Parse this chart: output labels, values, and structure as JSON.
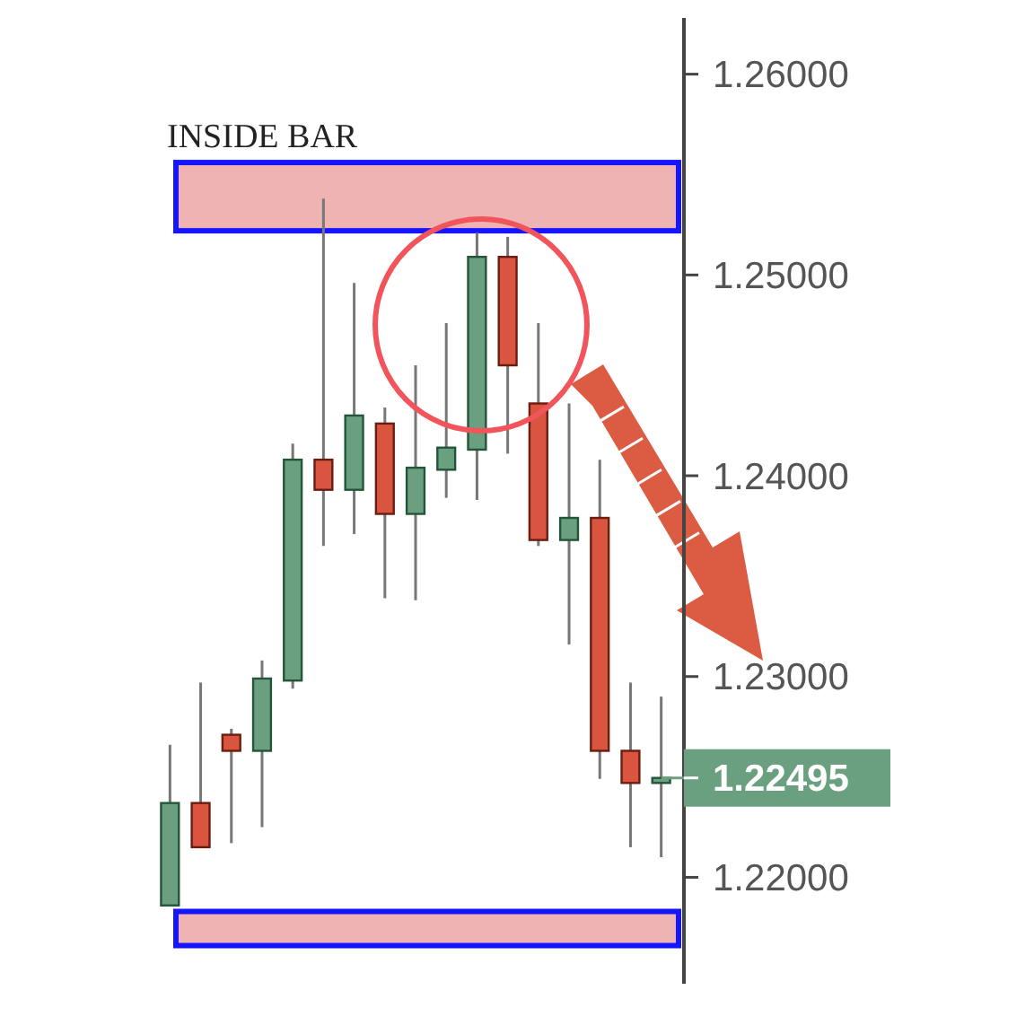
{
  "chart_data": {
    "type": "candlestick",
    "categories": [
      null,
      null,
      null,
      null,
      null,
      null,
      null,
      null,
      null,
      null,
      null,
      null,
      null,
      null,
      null,
      null,
      null
    ],
    "ohlc": [
      [
        1.2186,
        1.2266,
        1.2186,
        1.2237
      ],
      [
        1.2237,
        1.2297,
        1.2215,
        1.2215
      ],
      [
        1.2271,
        1.2274,
        1.2217,
        1.2263
      ],
      [
        1.2263,
        1.2308,
        1.2225,
        1.2299
      ],
      [
        1.2298,
        1.2416,
        1.2294,
        1.2408
      ],
      [
        1.2408,
        1.2538,
        1.2365,
        1.2393
      ],
      [
        1.2393,
        1.2496,
        1.2371,
        1.243
      ],
      [
        1.2426,
        1.2434,
        1.2339,
        1.2381
      ],
      [
        1.2381,
        1.2455,
        1.2338,
        1.2404
      ],
      [
        1.2403,
        1.2476,
        1.2389,
        1.2414
      ],
      [
        1.2413,
        1.2521,
        1.2388,
        1.2509
      ],
      [
        1.2509,
        1.2519,
        1.2411,
        1.2455
      ],
      [
        1.2436,
        1.2476,
        1.2365,
        1.2368
      ],
      [
        1.2368,
        1.2436,
        1.2316,
        1.2379
      ],
      [
        1.2379,
        1.2408,
        1.2249,
        1.2263
      ],
      [
        1.2263,
        1.2297,
        1.2215,
        1.2247
      ],
      [
        1.2247,
        1.229,
        1.221,
        1.22495
      ]
    ],
    "colors": [
      "#6aa07f",
      "#d9553f",
      "#d9553f",
      "#6aa07f",
      "#6aa07f",
      "#d9553f",
      "#6aa07f",
      "#d9553f",
      "#6aa07f",
      "#6aa07f",
      "#6aa07f",
      "#d9553f",
      "#d9553f",
      "#6aa07f",
      "#d9553f",
      "#d9553f",
      "#6aa07f"
    ],
    "ylim": [
      1.2147,
      1.2628
    ],
    "yticks": [
      {
        "value": 1.22,
        "label": "1.22000"
      },
      {
        "value": 1.23,
        "label": "1.23000"
      },
      {
        "value": 1.24,
        "label": "1.24000"
      },
      {
        "value": 1.25,
        "label": "1.25000"
      },
      {
        "value": 1.26,
        "label": "1.26000"
      }
    ],
    "ref_lines": [
      {
        "axis": "y",
        "value": 1.22495,
        "label": "1.22495",
        "color": "#6aa07f"
      }
    ],
    "bands": [
      {
        "axis": "y",
        "from": 1.2522,
        "to": 1.2556,
        "color": "#efb3b3"
      },
      {
        "axis": "y",
        "from": 1.2166,
        "to": 1.2183,
        "color": "#efb3b3"
      }
    ],
    "annotations": [
      "INSIDE BAR"
    ]
  }
}
